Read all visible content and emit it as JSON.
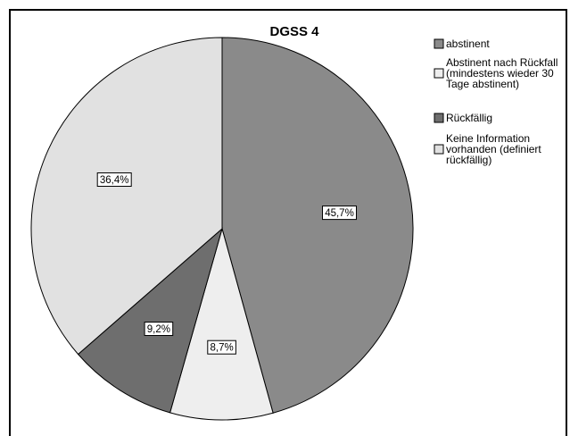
{
  "chart_data": {
    "type": "pie",
    "title": "DGSS 4",
    "slices": [
      {
        "label": "abstinent",
        "label_lines": [
          "abstinent"
        ],
        "value": 45.7,
        "value_label": "45,7%",
        "color": "#8a8a8a"
      },
      {
        "label": "Abstinent nach Rückfall (mindestens wieder 30 Tage abstinent)",
        "label_lines": [
          "Abstinent nach Rückfall",
          "(mindestens wieder 30",
          "Tage abstinent)"
        ],
        "value": 8.7,
        "value_label": "8,7%",
        "color": "#eeeeee"
      },
      {
        "label": "Rückfällig",
        "label_lines": [
          "Rückfällig"
        ],
        "value": 9.2,
        "value_label": "9,2%",
        "color": "#6e6e6e"
      },
      {
        "label": "Keine Information vorhanden (definiert rückfällig)",
        "label_lines": [
          "Keine Information",
          "vorhanden (definiert",
          "rückfällig)"
        ],
        "value": 36.4,
        "value_label": "36,4%",
        "color": "#e1e1e1"
      }
    ],
    "start": "top",
    "direction": "clockwise",
    "legend_position": "top-right"
  }
}
